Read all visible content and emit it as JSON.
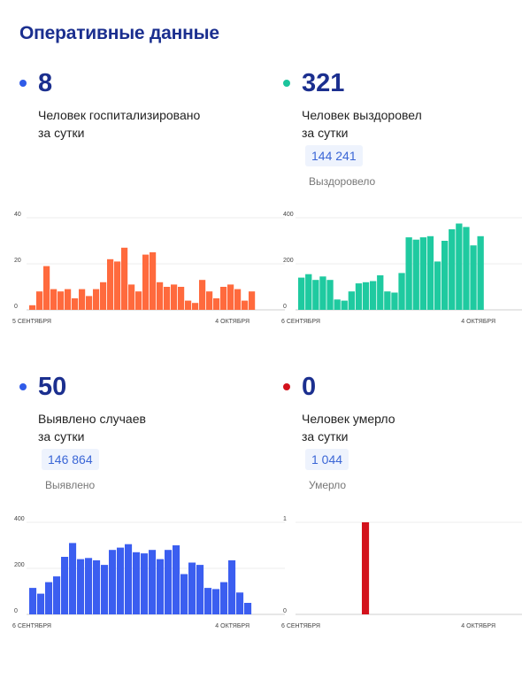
{
  "page_title": "Оперативные данные",
  "cards": [
    {
      "value": "8",
      "desc_line1": "Человек госпитализировано",
      "desc_line2": "за сутки",
      "dot_color": "#2f5be8"
    },
    {
      "value": "321",
      "desc_line1": "Человек выздоровел",
      "desc_line2": "за сутки",
      "total": "144 241",
      "total_label": "Выздоровело",
      "dot_color": "#1bc49c"
    },
    {
      "value": "50",
      "desc_line1": "Выявлено случаев",
      "desc_line2": "за сутки",
      "total": "146 864",
      "total_label": "Выявлено",
      "dot_color": "#2f5be8"
    },
    {
      "value": "0",
      "desc_line1": "Человек умерло",
      "desc_line2": "за сутки",
      "total": "1 044",
      "total_label": "Умерло",
      "dot_color": "#d3121c"
    }
  ],
  "chart_data": [
    {
      "type": "bar",
      "color": "#ff6a3d",
      "ylim": [
        0,
        40
      ],
      "yticks": [
        "0",
        "20",
        "40"
      ],
      "x_start_label": "5 сентября",
      "x_end_label": "4 октября",
      "values": [
        2,
        8,
        19,
        9,
        8,
        9,
        5,
        9,
        6,
        9,
        12,
        22,
        21,
        27,
        11,
        8,
        24,
        25,
        12,
        10,
        11,
        10,
        4,
        3,
        13,
        8,
        5,
        10,
        11,
        9,
        4,
        8
      ]
    },
    {
      "type": "bar",
      "color": "#1fcaa0",
      "ylim": [
        0,
        400
      ],
      "yticks": [
        "0",
        "200",
        "400"
      ],
      "x_start_label": "6 сентября",
      "x_end_label": "4 октября",
      "values": [
        140,
        155,
        130,
        145,
        130,
        45,
        40,
        80,
        115,
        120,
        125,
        150,
        80,
        75,
        160,
        315,
        305,
        315,
        320,
        210,
        300,
        350,
        375,
        360,
        280,
        320
      ]
    },
    {
      "type": "bar",
      "color": "#3b5ef0",
      "ylim": [
        0,
        400
      ],
      "yticks": [
        "0",
        "200",
        "400"
      ],
      "x_start_label": "6 сентября",
      "x_end_label": "4 октября",
      "values": [
        115,
        90,
        140,
        165,
        250,
        310,
        240,
        245,
        235,
        215,
        280,
        290,
        305,
        270,
        265,
        280,
        240,
        280,
        300,
        175,
        225,
        215,
        115,
        110,
        140,
        235,
        95,
        50
      ]
    },
    {
      "type": "bar",
      "color": "#d3121c",
      "ylim": [
        0,
        1
      ],
      "yticks": [
        "0",
        "1"
      ],
      "x_start_label": "6 сентября",
      "x_end_label": "4 октября",
      "values": [
        0,
        0,
        0,
        0,
        0,
        0,
        0,
        0,
        1,
        0,
        0,
        0,
        0,
        0,
        0,
        0,
        0,
        0,
        0,
        0,
        0,
        0,
        0,
        0,
        0,
        0
      ]
    }
  ]
}
